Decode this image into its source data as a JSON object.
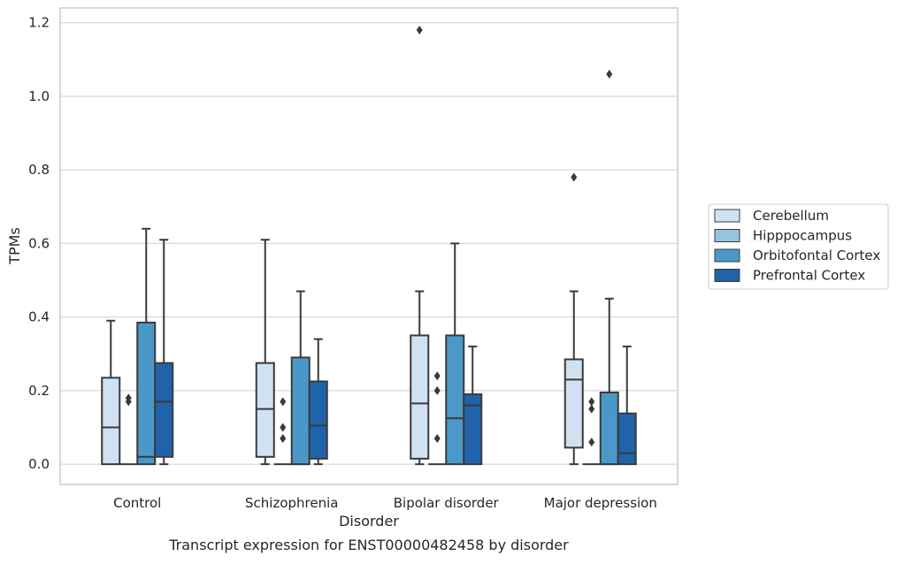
{
  "chart_data": {
    "type": "boxplot",
    "title": "Transcript expression for ENST00000482458 by disorder",
    "xlabel": "Disorder",
    "ylabel": "TPMs",
    "categories": [
      "Control",
      "Schizophrenia",
      "Bipolar disorder",
      "Major depression"
    ],
    "ylim": [
      -0.055,
      1.24
    ],
    "yticks": [
      0.0,
      0.2,
      0.4,
      0.6,
      0.8,
      1.0,
      1.2
    ],
    "ytick_labels": [
      "0.0",
      "0.2",
      "0.4",
      "0.6",
      "0.8",
      "1.0",
      "1.2"
    ],
    "grid": "horizontal",
    "legend_position": "right",
    "series": [
      {
        "name": "Cerebellum",
        "color": "#d0e1f2",
        "boxes": [
          {
            "whisker_low": 0.0,
            "q1": 0.0,
            "median": 0.1,
            "q3": 0.235,
            "whisker_high": 0.39,
            "outliers": []
          },
          {
            "whisker_low": 0.0,
            "q1": 0.02,
            "median": 0.15,
            "q3": 0.275,
            "whisker_high": 0.61,
            "outliers": []
          },
          {
            "whisker_low": 0.0,
            "q1": 0.015,
            "median": 0.165,
            "q3": 0.35,
            "whisker_high": 0.47,
            "outliers": [
              1.18
            ]
          },
          {
            "whisker_low": 0.0,
            "q1": 0.045,
            "median": 0.23,
            "q3": 0.285,
            "whisker_high": 0.47,
            "outliers": [
              0.78
            ]
          }
        ]
      },
      {
        "name": "Hipppocampus",
        "color": "#94c4df",
        "boxes": [
          {
            "whisker_low": 0.0,
            "q1": 0.0,
            "median": 0.0,
            "q3": 0.0,
            "whisker_high": 0.0,
            "outliers": [
              0.17,
              0.18
            ]
          },
          {
            "whisker_low": 0.0,
            "q1": 0.0,
            "median": 0.0,
            "q3": 0.0,
            "whisker_high": 0.0,
            "outliers": [
              0.07,
              0.1,
              0.17
            ]
          },
          {
            "whisker_low": 0.0,
            "q1": 0.0,
            "median": 0.0,
            "q3": 0.0,
            "whisker_high": 0.0,
            "outliers": [
              0.07,
              0.2,
              0.24
            ]
          },
          {
            "whisker_low": 0.0,
            "q1": 0.0,
            "median": 0.0,
            "q3": 0.0,
            "whisker_high": 0.0,
            "outliers": [
              0.06,
              0.15,
              0.17
            ]
          }
        ]
      },
      {
        "name": "Orbitofontal Cortex",
        "color": "#4a98c9",
        "boxes": [
          {
            "whisker_low": 0.0,
            "q1": 0.0,
            "median": 0.02,
            "q3": 0.385,
            "whisker_high": 0.64,
            "outliers": []
          },
          {
            "whisker_low": 0.0,
            "q1": 0.0,
            "median": 0.0,
            "q3": 0.29,
            "whisker_high": 0.47,
            "outliers": []
          },
          {
            "whisker_low": 0.0,
            "q1": 0.0,
            "median": 0.125,
            "q3": 0.35,
            "whisker_high": 0.6,
            "outliers": []
          },
          {
            "whisker_low": 0.0,
            "q1": 0.0,
            "median": 0.0,
            "q3": 0.195,
            "whisker_high": 0.45,
            "outliers": [
              1.06
            ]
          }
        ]
      },
      {
        "name": "Prefrontal Cortex",
        "color": "#2163aa",
        "boxes": [
          {
            "whisker_low": 0.0,
            "q1": 0.02,
            "median": 0.17,
            "q3": 0.275,
            "whisker_high": 0.61,
            "outliers": []
          },
          {
            "whisker_low": 0.0,
            "q1": 0.015,
            "median": 0.105,
            "q3": 0.225,
            "whisker_high": 0.34,
            "outliers": []
          },
          {
            "whisker_low": 0.0,
            "q1": 0.0,
            "median": 0.16,
            "q3": 0.19,
            "whisker_high": 0.32,
            "outliers": []
          },
          {
            "whisker_low": 0.0,
            "q1": 0.0,
            "median": 0.03,
            "q3": 0.138,
            "whisker_high": 0.32,
            "outliers": []
          }
        ]
      }
    ]
  }
}
